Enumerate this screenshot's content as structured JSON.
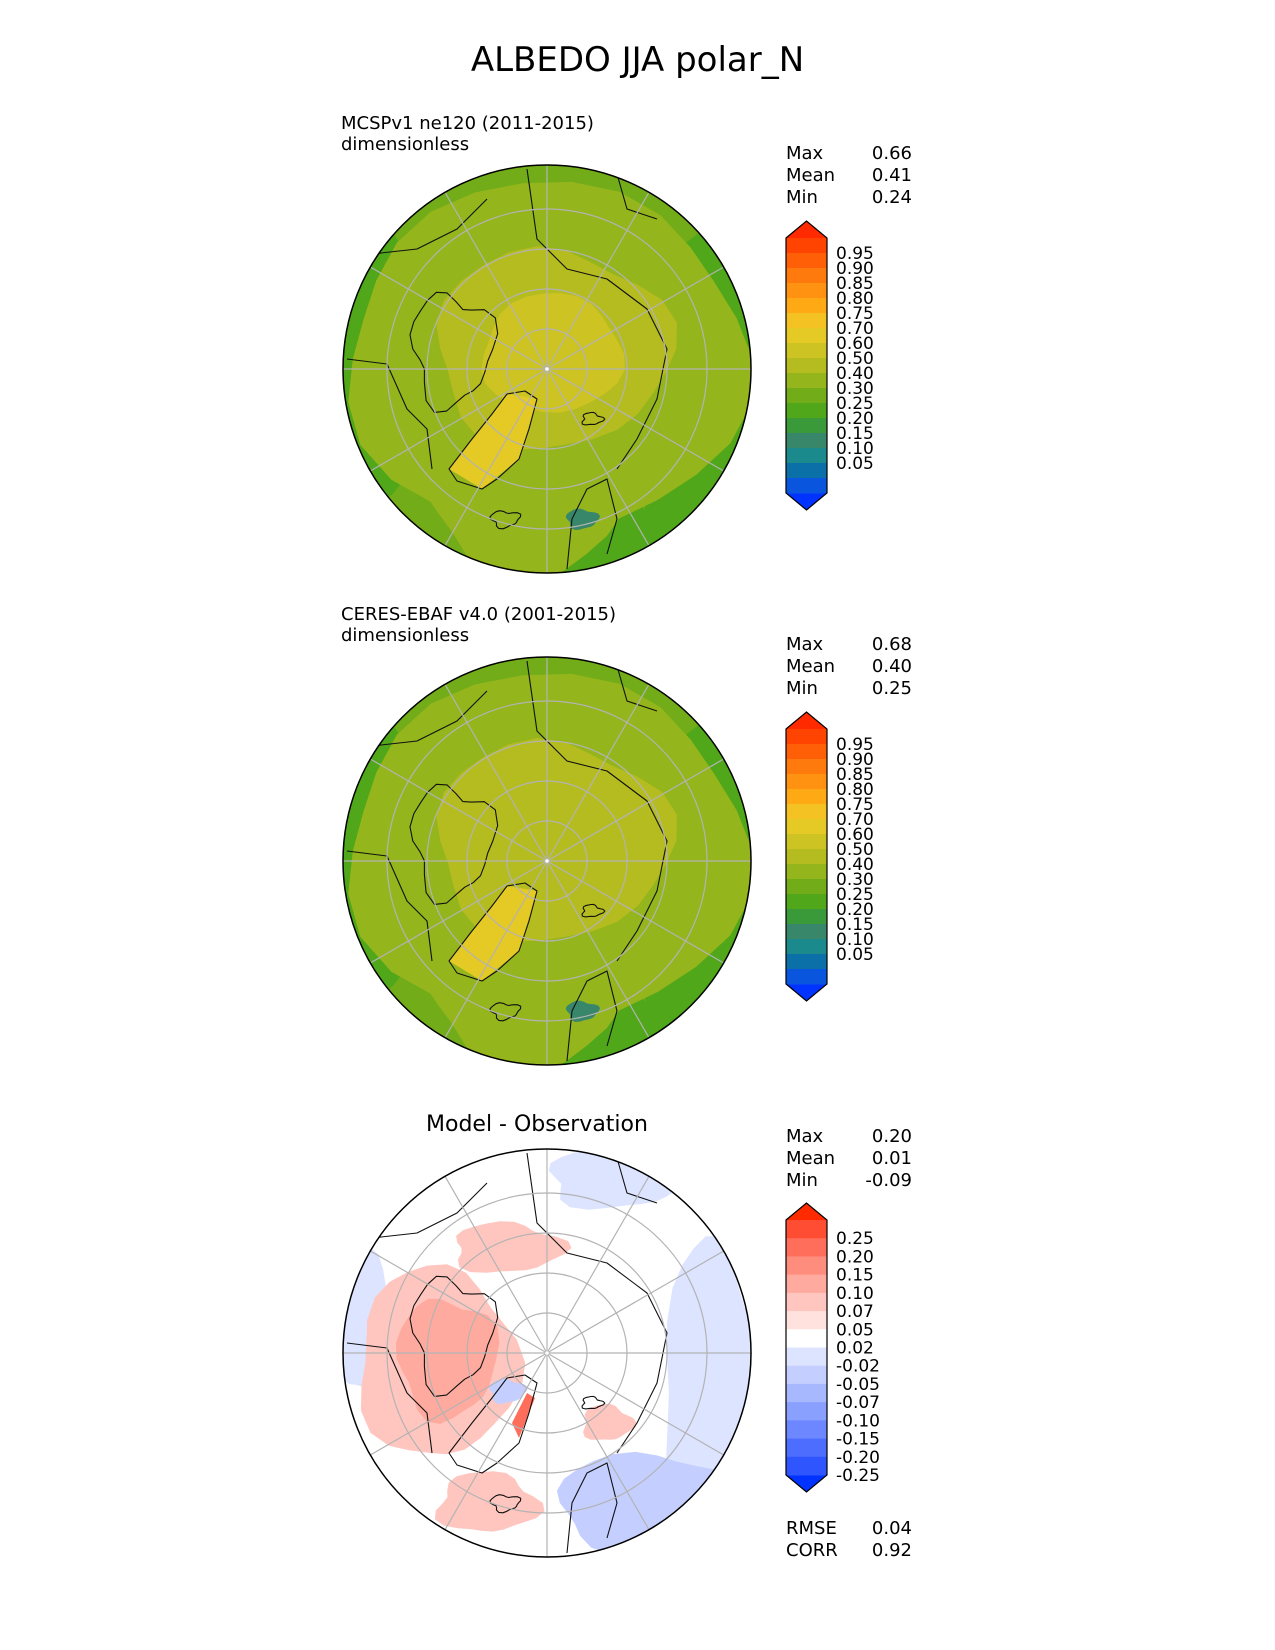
{
  "title": "ALBEDO JJA polar_N",
  "colors": {
    "albedo_levels": [
      "#0033ff",
      "#0a55dd",
      "#0b70a8",
      "#1b8a8c",
      "#38876a",
      "#3a9a3a",
      "#4fa719",
      "#72ad19",
      "#94b51c",
      "#b5bc1f",
      "#cdc322",
      "#e5c925",
      "#f5c223",
      "#ffaa14",
      "#ff9210",
      "#ff7a0c",
      "#ff6007",
      "#ff4402",
      "#ff2a00"
    ],
    "diff_levels": [
      "#0033ff",
      "#2f55ff",
      "#4d6dff",
      "#6c87ff",
      "#8aa0ff",
      "#a8b8ff",
      "#c4cfff",
      "#dde4ff",
      "#ffffff",
      "#ffe1de",
      "#ffc6bf",
      "#ffaa9f",
      "#ff8d7e",
      "#ff6e5b",
      "#ff4d33",
      "#ff2a00"
    ],
    "map_grid": "#b3b3b3",
    "coastline": "#111111"
  },
  "chart_data": [
    {
      "type": "heatmap",
      "projection": "north-polar-stereographic",
      "title": "MCSPv1 ne120 (2011-2015)",
      "units": "dimensionless",
      "stats": [
        {
          "label": "Max",
          "value": "0.66"
        },
        {
          "label": "Mean",
          "value": "0.41"
        },
        {
          "label": "Min",
          "value": "0.24"
        }
      ],
      "colorbar": {
        "ticks": [
          "0.95",
          "0.90",
          "0.85",
          "0.80",
          "0.75",
          "0.70",
          "0.60",
          "0.50",
          "0.40",
          "0.30",
          "0.25",
          "0.20",
          "0.15",
          "0.10",
          "0.05"
        ],
        "extend": "both"
      }
    },
    {
      "type": "heatmap",
      "projection": "north-polar-stereographic",
      "title": "CERES-EBAF v4.0 (2001-2015)",
      "units": "dimensionless",
      "stats": [
        {
          "label": "Max",
          "value": "0.68"
        },
        {
          "label": "Mean",
          "value": "0.40"
        },
        {
          "label": "Min",
          "value": "0.25"
        }
      ],
      "colorbar": {
        "ticks": [
          "0.95",
          "0.90",
          "0.85",
          "0.80",
          "0.75",
          "0.70",
          "0.60",
          "0.50",
          "0.40",
          "0.30",
          "0.25",
          "0.20",
          "0.15",
          "0.10",
          "0.05"
        ],
        "extend": "both"
      }
    },
    {
      "type": "heatmap",
      "projection": "north-polar-stereographic",
      "title": "Model - Observation",
      "stats": [
        {
          "label": "Max",
          "value": "0.20"
        },
        {
          "label": "Mean",
          "value": "0.01"
        },
        {
          "label": "Min",
          "value": "-0.09"
        }
      ],
      "colorbar": {
        "ticks": [
          "0.25",
          "0.20",
          "0.15",
          "0.10",
          "0.07",
          "0.05",
          "0.02",
          "-0.02",
          "-0.05",
          "-0.07",
          "-0.10",
          "-0.15",
          "-0.20",
          "-0.25"
        ],
        "extend": "both"
      },
      "metrics": [
        {
          "label": "RMSE",
          "value": "0.04"
        },
        {
          "label": "CORR",
          "value": "0.92"
        }
      ]
    }
  ]
}
